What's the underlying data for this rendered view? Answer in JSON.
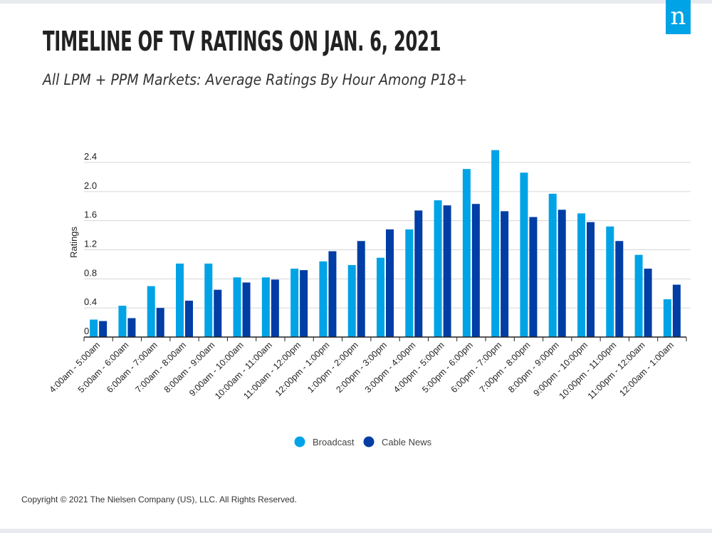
{
  "header": {
    "title": "TIMELINE OF TV RATINGS ON JAN. 6, 2021",
    "subtitle": "All LPM + PPM Markets: Average Ratings By Hour Among P18+",
    "logo_glyph": "n"
  },
  "footer": {
    "copyright": "Copyright © 2021 The Nielsen Company (US), LLC. All Rights Reserved."
  },
  "colors": {
    "broadcast": "#00a3e6",
    "cable_news": "#003da5",
    "logo_bg": "#00a3e6"
  },
  "chart_data": {
    "type": "bar",
    "title": "TIMELINE OF TV RATINGS ON JAN. 6, 2021",
    "subtitle": "All LPM + PPM Markets: Average Ratings By Hour Among P18+",
    "xlabel": "",
    "ylabel": "Ratings",
    "ylim": [
      0,
      2.4
    ],
    "yticks": [
      0,
      0.4,
      0.8,
      1.2,
      1.6,
      2.0,
      2.4
    ],
    "ytick_labels": [
      "0",
      "0.4",
      "0.8",
      "1.2",
      "1.6",
      "2.0",
      "2.4"
    ],
    "grid": true,
    "legend_position": "bottom-center",
    "categories": [
      "4:00am - 5:00am",
      "5:00am - 6:00am",
      "6:00am - 7:00am",
      "7:00am - 8:00am",
      "8:00am - 9:00am",
      "9:00am - 10:00am",
      "10:00am - 11:00am",
      "11:00am - 12:00pm",
      "12:00pm - 1:00pm",
      "1:00pm - 2:00pm",
      "2:00pm - 3:00pm",
      "3:00pm - 4:00pm",
      "4:00pm - 5:00pm",
      "5:00pm - 6:00pm",
      "6:00pm - 7:00pm",
      "7:00pm - 8:00pm",
      "8:00pm - 9:00pm",
      "9:00pm - 10:00pm",
      "10:00pm - 11:00pm",
      "11:00pm - 12:00am",
      "12:00am - 1:00am"
    ],
    "series": [
      {
        "name": "Broadcast",
        "values": [
          0.24,
          0.43,
          0.7,
          1.01,
          1.01,
          0.82,
          0.82,
          0.94,
          1.04,
          0.99,
          1.09,
          1.48,
          1.88,
          2.31,
          2.57,
          2.26,
          1.97,
          1.7,
          1.52,
          1.13,
          0.52
        ]
      },
      {
        "name": "Cable News",
        "values": [
          0.22,
          0.26,
          0.4,
          0.5,
          0.65,
          0.75,
          0.79,
          0.92,
          1.18,
          1.32,
          1.48,
          1.74,
          1.81,
          1.83,
          1.73,
          1.65,
          1.75,
          1.58,
          1.32,
          0.94,
          0.72
        ]
      }
    ]
  }
}
